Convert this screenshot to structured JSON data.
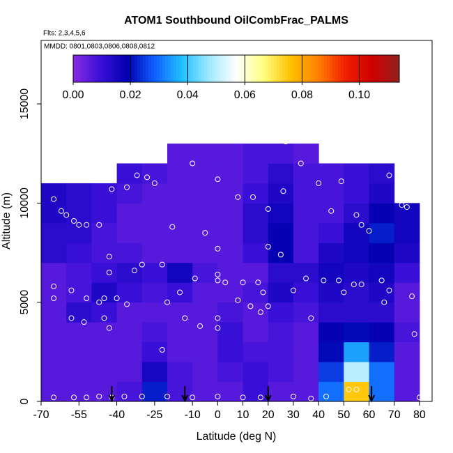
{
  "chart_data": {
    "type": "heatmap",
    "title": "ATOM1 Southbound OilCombFrac_PALMS",
    "subtitle": "Flts: 2,3,4,5,6",
    "annotation": "MMDD: 0801,0803,0806,0808,0812",
    "x_label": "Latitude (deg N)",
    "y_label": "Altitude (m)",
    "xlim": [
      -70,
      85
    ],
    "ylim": [
      0,
      18200
    ],
    "xticks": [
      -70,
      -55,
      -40,
      -25,
      -10,
      0,
      10,
      20,
      30,
      40,
      50,
      60,
      70,
      80
    ],
    "yticks": [
      0,
      5000,
      10000,
      15000
    ],
    "zlim": [
      0,
      0.114
    ],
    "zticks": [
      {
        "value": 0,
        "label": "0.00"
      },
      {
        "value": 0.02,
        "label": "0.02"
      },
      {
        "value": 0.04,
        "label": "0.04"
      },
      {
        "value": 0.06,
        "label": "0.06"
      },
      {
        "value": 0.08,
        "label": "0.08"
      },
      {
        "value": 0.1,
        "label": "0.10"
      }
    ],
    "colormap": [
      "#8a2be2",
      "#3a10d8",
      "#0000b0",
      "#1060ff",
      "#20c0ff",
      "#a0e8ff",
      "#ffffff",
      "#ffff80",
      "#ffc000",
      "#ff8000",
      "#f02000",
      "#d00000",
      "#902020"
    ],
    "x_bins": [
      -70,
      -60,
      -50,
      -40,
      -30,
      -20,
      -10,
      0,
      10,
      20,
      30,
      40,
      50,
      60,
      70,
      80
    ],
    "y_bins": [
      0,
      1000,
      2000,
      3000,
      4000,
      5000,
      6000,
      7000,
      8000,
      9000,
      10000,
      11000,
      12000,
      13000
    ],
    "z": [
      [
        0.006,
        0.006,
        0.006,
        0.008,
        0.022,
        0.008,
        0.006,
        0.006,
        0.01,
        0.006,
        0.006,
        0.03,
        0.075,
        0.03,
        0.006
      ],
      [
        0.006,
        0.006,
        0.006,
        0.006,
        0.015,
        0.008,
        0.006,
        0.008,
        0.01,
        0.008,
        0.006,
        0.025,
        0.05,
        0.03,
        0.006
      ],
      [
        0.006,
        0.006,
        0.006,
        0.006,
        0.01,
        0.006,
        0.006,
        0.01,
        0.008,
        0.008,
        0.006,
        0.02,
        0.035,
        0.022,
        0.006
      ],
      [
        0.006,
        0.006,
        0.006,
        0.006,
        0.008,
        0.006,
        0.006,
        0.01,
        0.006,
        0.008,
        0.006,
        0.018,
        0.02,
        0.018,
        0.008
      ],
      [
        0.006,
        0.012,
        0.01,
        0.006,
        0.006,
        0.006,
        0.006,
        0.008,
        0.006,
        0.01,
        0.008,
        0.012,
        0.012,
        0.012,
        0.006
      ],
      [
        0.006,
        0.008,
        0.014,
        0.01,
        0.008,
        0.01,
        0.006,
        0.006,
        0.008,
        0.014,
        0.01,
        0.014,
        0.012,
        0.014,
        0.006
      ],
      [
        0.006,
        0.008,
        0.01,
        0.012,
        0.01,
        0.016,
        0.008,
        0.006,
        0.006,
        0.012,
        0.012,
        0.016,
        0.014,
        0.016,
        0.01
      ],
      [
        0.012,
        0.01,
        0.008,
        0.008,
        0.006,
        0.006,
        0.006,
        0.006,
        0.01,
        0.018,
        0.008,
        0.014,
        0.016,
        0.018,
        0.014
      ],
      [
        0.012,
        0.012,
        0.008,
        0.006,
        0.006,
        0.006,
        0.006,
        0.006,
        0.012,
        0.018,
        0.008,
        0.01,
        0.016,
        0.022,
        0.016
      ],
      [
        0.014,
        0.012,
        0.01,
        0.006,
        0.006,
        0.006,
        0.006,
        0.006,
        0.012,
        0.016,
        0.008,
        0.008,
        0.012,
        0.018,
        0.016
      ],
      [
        0.014,
        0.012,
        0.01,
        0.008,
        0.006,
        0.006,
        0.006,
        0.006,
        0.01,
        0.014,
        0.008,
        0.008,
        0.01,
        0.014,
        null
      ],
      [
        null,
        null,
        null,
        0.01,
        0.008,
        0.006,
        0.006,
        0.006,
        0.008,
        0.012,
        0.008,
        0.008,
        0.01,
        0.012,
        null
      ],
      [
        null,
        null,
        null,
        null,
        null,
        0.006,
        0.006,
        0.006,
        0.008,
        0.008,
        0.006,
        null,
        null,
        null,
        null
      ]
    ],
    "points": {
      "x": [
        -65,
        -57,
        -52,
        -47,
        -42,
        -37,
        -30,
        -20,
        -10,
        0,
        10,
        17,
        30,
        37,
        43,
        52,
        55,
        80,
        -65,
        -65,
        -58,
        -52,
        -47,
        -45,
        -40,
        -36,
        -58,
        -53,
        -45,
        -43,
        -43,
        -43,
        -33,
        -30,
        -22,
        -20,
        -22,
        -13,
        -15,
        -9,
        -7,
        -5,
        0,
        0,
        3,
        0,
        0,
        0,
        -65,
        -62,
        -60,
        -57,
        -55,
        -52,
        -47,
        -45,
        -42,
        -36,
        -32,
        -28,
        -25,
        -18,
        -10,
        0,
        8,
        14,
        20,
        26,
        27,
        33,
        40,
        45,
        49,
        55,
        57,
        60,
        68,
        73,
        75,
        20,
        25,
        16,
        18,
        17,
        20,
        30,
        35,
        37,
        42,
        48,
        50,
        54,
        57,
        65,
        66,
        68,
        77,
        78,
        10,
        13,
        8
      ],
      "y": [
        200,
        200,
        200,
        250,
        200,
        250,
        250,
        250,
        200,
        250,
        200,
        200,
        250,
        150,
        250,
        600,
        600,
        200,
        5800,
        5200,
        5600,
        5200,
        5000,
        5200,
        5200,
        4900,
        4200,
        4000,
        4200,
        3700,
        7300,
        6500,
        6600,
        6900,
        6900,
        5000,
        2600,
        4200,
        5500,
        6200,
        3800,
        8500,
        6400,
        6100,
        6000,
        7700,
        4200,
        3700,
        10200,
        9600,
        9400,
        9100,
        8900,
        8900,
        8900,
        11600,
        10700,
        10800,
        11400,
        11300,
        11000,
        8800,
        12000,
        11200,
        10300,
        10300,
        9700,
        10600,
        13100,
        12000,
        11000,
        9600,
        11100,
        9400,
        8900,
        8600,
        11400,
        9900,
        9800,
        7800,
        7400,
        6000,
        5500,
        4500,
        4800,
        5600,
        6200,
        4200,
        6100,
        6100,
        5500,
        5900,
        5900,
        6100,
        5000,
        5600,
        5300,
        3400,
        6000,
        4800,
        5100
      ]
    },
    "arrows": [
      -42,
      -13,
      20,
      61
    ]
  }
}
